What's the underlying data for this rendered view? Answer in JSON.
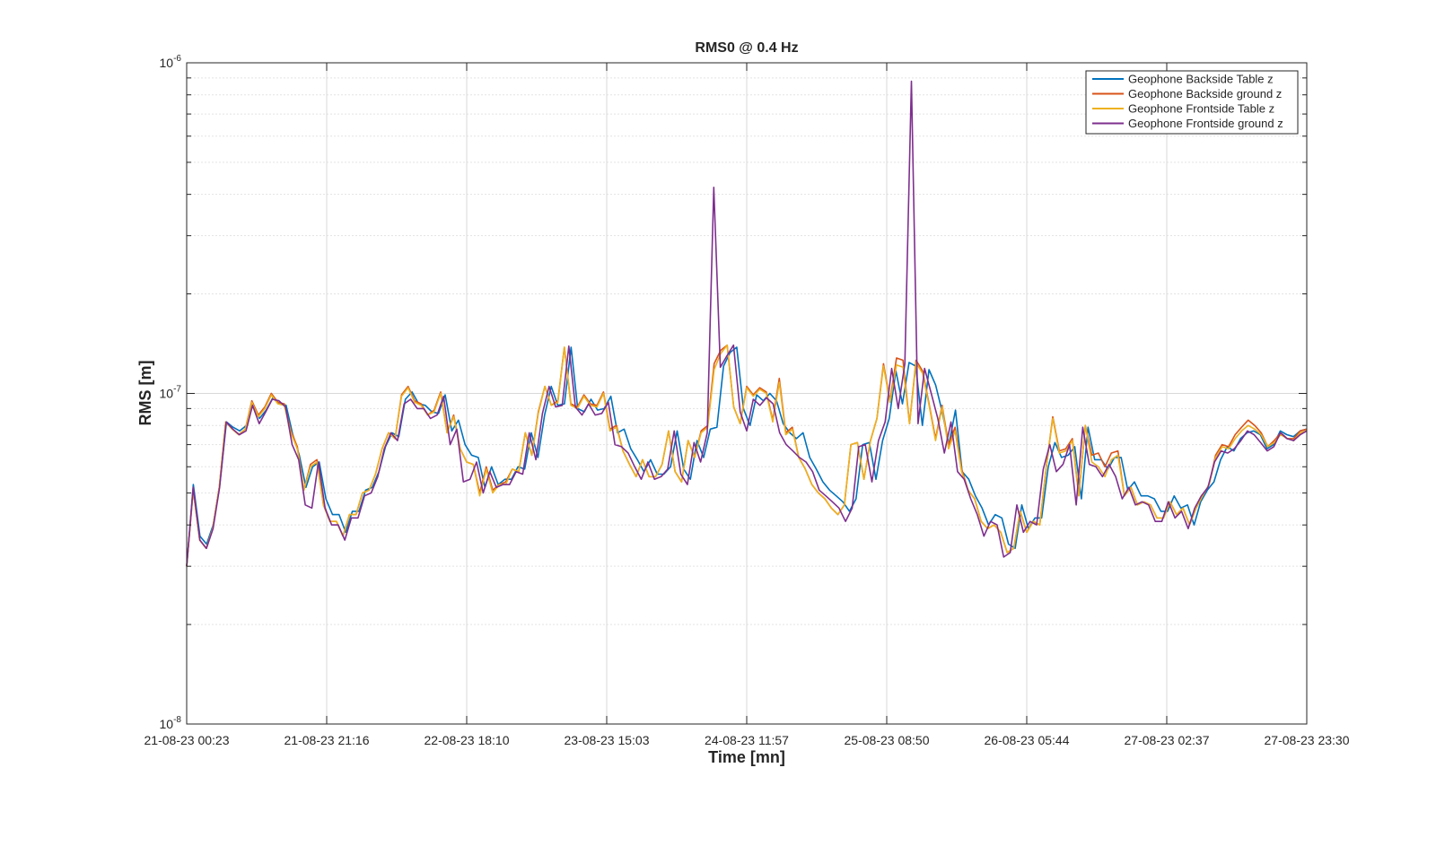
{
  "chart_data": {
    "type": "line",
    "title": "RMS0 @ 0.4 Hz",
    "xlabel": "Time [mn]",
    "ylabel": "RMS [m]",
    "yscale": "log",
    "ylim": [
      1e-08,
      1e-06
    ],
    "xlim": [
      0,
      8
    ],
    "grid": true,
    "legend_position": "top-right",
    "x_tick_labels": [
      "21-08-23 00:23",
      "21-08-23 21:16",
      "22-08-23 18:10",
      "23-08-23 15:03",
      "24-08-23 11:57",
      "25-08-23 08:50",
      "26-08-23 05:44",
      "27-08-23 02:37",
      "27-08-23 23:30"
    ],
    "y_ticks": [
      {
        "base": "10",
        "exp": "-8",
        "value": 1e-08
      },
      {
        "base": "10",
        "exp": "-7",
        "value": 1e-07
      },
      {
        "base": "10",
        "exp": "-6",
        "value": 1e-06
      }
    ],
    "series": [
      {
        "name": "Geophone Backside Table z",
        "color": "#0072BD",
        "values": [
          3.0,
          5.3,
          3.7,
          3.5,
          4.0,
          5.3,
          8.2,
          7.9,
          7.7,
          8.0,
          9.3,
          8.4,
          8.9,
          9.7,
          9.3,
          9.2,
          7.5,
          6.5,
          5.2,
          6.0,
          6.2,
          4.8,
          4.3,
          4.3,
          3.8,
          4.4,
          4.4,
          5.1,
          5.2,
          5.8,
          6.9,
          7.6,
          7.4,
          9.6,
          10.1,
          9.3,
          9.2,
          8.8,
          8.7,
          9.9,
          7.7,
          8.3,
          7.0,
          6.5,
          6.4,
          5.2,
          6.0,
          5.3,
          5.5,
          5.5,
          6.0,
          5.9,
          7.6,
          6.4,
          8.6,
          10.5,
          9.2,
          9.3,
          13.8,
          9.0,
          8.8,
          9.6,
          8.9,
          9.0,
          9.8,
          7.6,
          7.8,
          6.8,
          6.3,
          5.8,
          6.3,
          5.7,
          5.7,
          6.0,
          7.7,
          5.9,
          5.5,
          7.2,
          6.4,
          7.8,
          7.9,
          12.1,
          13.3,
          13.8,
          9.0,
          8.0,
          9.9,
          9.5,
          10.0,
          9.5,
          8.1,
          7.6,
          7.3,
          7.6,
          6.4,
          5.9,
          5.4,
          5.1,
          4.9,
          4.7,
          4.4,
          4.8,
          7.0,
          7.1,
          5.5,
          7.2,
          8.4,
          11.7,
          9.3,
          12.4,
          12.1,
          8.0,
          11.8,
          10.6,
          8.8,
          7.0,
          8.9,
          5.8,
          5.5,
          4.9,
          4.5,
          4.0,
          4.3,
          4.2,
          3.5,
          3.4,
          4.6,
          3.9,
          4.2,
          4.2,
          6.0,
          7.1,
          6.4,
          6.5,
          6.9,
          4.8,
          7.9,
          6.3,
          6.3,
          5.9,
          6.4,
          6.4,
          5.1,
          5.4,
          4.9,
          4.9,
          4.8,
          4.4,
          4.4,
          4.9,
          4.5,
          4.6,
          4.0,
          4.7,
          5.1,
          5.4,
          6.3,
          6.9,
          6.7,
          7.3,
          7.6,
          7.7,
          7.5,
          6.8,
          7.0,
          7.7,
          7.5,
          7.4,
          7.7,
          7.8
        ]
      },
      {
        "name": "Geophone Backside ground z",
        "color": "#D95319",
        "values": [
          3.0,
          5.1,
          3.6,
          3.4,
          3.9,
          5.2,
          8.2,
          7.8,
          7.5,
          7.8,
          9.5,
          8.6,
          9.1,
          10.0,
          9.4,
          9.3,
          7.7,
          6.9,
          5.1,
          6.1,
          6.3,
          4.6,
          4.1,
          4.1,
          3.7,
          4.3,
          4.3,
          5.0,
          5.1,
          5.7,
          6.8,
          7.6,
          7.3,
          9.9,
          10.5,
          9.5,
          9.3,
          8.6,
          8.9,
          10.1,
          7.6,
          8.6,
          6.8,
          6.2,
          6.1,
          5.0,
          6.0,
          5.1,
          5.3,
          5.4,
          5.9,
          5.8,
          7.6,
          6.5,
          8.8,
          10.5,
          9.2,
          9.5,
          13.8,
          9.3,
          9.1,
          9.9,
          9.3,
          9.2,
          10.1,
          7.8,
          8.0,
          6.7,
          6.1,
          5.6,
          6.3,
          5.6,
          5.6,
          6.1,
          7.7,
          5.8,
          5.4,
          7.2,
          6.4,
          7.7,
          8.0,
          12.3,
          13.5,
          14.0,
          9.1,
          8.1,
          10.5,
          9.9,
          10.4,
          10.1,
          8.3,
          11.1,
          7.6,
          7.9,
          6.4,
          5.9,
          5.3,
          5.0,
          4.8,
          4.5,
          4.3,
          4.6,
          7.0,
          7.1,
          5.5,
          7.2,
          8.4,
          12.3,
          9.5,
          12.8,
          12.6,
          8.1,
          12.6,
          11.7,
          9.3,
          7.3,
          9.2,
          7.0,
          7.9,
          5.9,
          5.1,
          4.8,
          4.1,
          3.9,
          4.0,
          3.8,
          3.3,
          3.4,
          4.4,
          3.8,
          4.1,
          4.0,
          6.0,
          8.5,
          6.7,
          6.8,
          7.3,
          4.9,
          8.0,
          6.5,
          6.6,
          6.0,
          6.6,
          6.7,
          4.9,
          5.2,
          4.6,
          4.7,
          4.6,
          4.2,
          4.2,
          4.7,
          4.3,
          4.5,
          4.0,
          4.5,
          4.9,
          5.3,
          6.5,
          7.0,
          6.9,
          7.5,
          7.9,
          8.3,
          8.0,
          7.6,
          6.9,
          7.2,
          7.6,
          7.3,
          7.3,
          7.7,
          7.8
        ]
      },
      {
        "name": "Geophone Frontside Table z",
        "color": "#EDB120",
        "values": [
          3.0,
          5.1,
          3.6,
          3.4,
          3.9,
          5.2,
          8.2,
          7.8,
          7.5,
          7.8,
          9.4,
          8.5,
          9.0,
          9.9,
          9.3,
          9.2,
          7.6,
          6.8,
          5.1,
          6.0,
          6.2,
          4.6,
          4.1,
          4.1,
          3.7,
          4.3,
          4.3,
          5.0,
          5.1,
          5.7,
          6.8,
          7.6,
          7.3,
          9.8,
          10.4,
          9.4,
          9.2,
          8.6,
          8.8,
          10.0,
          7.6,
          8.5,
          6.8,
          6.2,
          6.1,
          4.9,
          5.9,
          5.0,
          5.3,
          5.3,
          5.9,
          5.8,
          7.6,
          6.5,
          8.7,
          10.5,
          9.2,
          9.4,
          13.8,
          9.2,
          9.0,
          9.8,
          9.2,
          9.1,
          10.0,
          7.7,
          7.9,
          6.7,
          6.1,
          5.6,
          6.3,
          5.6,
          5.6,
          6.1,
          7.7,
          5.8,
          5.4,
          7.2,
          6.4,
          7.6,
          7.9,
          11.8,
          13.2,
          14.0,
          9.1,
          8.1,
          10.4,
          9.8,
          10.3,
          10.0,
          8.2,
          10.8,
          7.5,
          7.8,
          6.4,
          5.9,
          5.3,
          5.0,
          4.8,
          4.5,
          4.3,
          4.6,
          7.0,
          7.1,
          5.5,
          7.2,
          8.4,
          12.1,
          9.4,
          12.2,
          12.0,
          8.1,
          12.4,
          11.5,
          9.2,
          7.2,
          9.1,
          6.8,
          7.7,
          5.8,
          5.1,
          4.8,
          4.1,
          3.9,
          4.0,
          3.8,
          3.3,
          3.4,
          4.4,
          3.8,
          4.1,
          4.0,
          6.0,
          8.4,
          6.6,
          6.7,
          7.2,
          4.9,
          8.0,
          6.2,
          6.0,
          5.6,
          6.3,
          6.5,
          4.9,
          5.2,
          4.6,
          4.7,
          4.6,
          4.2,
          4.2,
          4.7,
          4.3,
          4.5,
          4.0,
          4.5,
          4.9,
          5.3,
          6.4,
          6.9,
          6.8,
          7.3,
          7.7,
          8.0,
          7.8,
          7.5,
          6.9,
          7.1,
          7.5,
          7.3,
          7.2,
          7.6,
          7.7
        ]
      },
      {
        "name": "Geophone Frontside ground z",
        "color": "#7E2F8E",
        "values": [
          3.0,
          5.2,
          3.6,
          3.4,
          3.9,
          5.2,
          8.2,
          7.8,
          7.5,
          7.7,
          9.2,
          8.1,
          8.8,
          9.6,
          9.5,
          9.1,
          7.0,
          6.3,
          4.6,
          4.5,
          6.2,
          4.5,
          4.0,
          4.0,
          3.6,
          4.2,
          4.2,
          4.9,
          5.0,
          5.6,
          6.8,
          7.6,
          7.2,
          9.3,
          9.6,
          9.0,
          9.0,
          8.4,
          8.6,
          9.8,
          7.0,
          7.8,
          5.4,
          5.5,
          6.2,
          5.0,
          5.8,
          5.2,
          5.3,
          5.3,
          5.8,
          5.7,
          7.6,
          6.3,
          8.7,
          10.5,
          9.1,
          9.2,
          13.9,
          9.1,
          8.6,
          9.3,
          8.6,
          8.7,
          9.4,
          7.0,
          6.9,
          6.6,
          6.0,
          5.5,
          6.2,
          5.5,
          5.6,
          5.9,
          7.7,
          5.7,
          5.3,
          7.1,
          6.2,
          7.6,
          42.0,
          12.0,
          13.0,
          14.0,
          8.8,
          7.7,
          9.6,
          9.2,
          9.7,
          9.3,
          7.6,
          7.0,
          6.7,
          6.4,
          6.2,
          5.8,
          5.1,
          4.9,
          4.7,
          4.5,
          4.1,
          4.5,
          6.9,
          7.0,
          5.4,
          7.2,
          8.2,
          11.9,
          9.0,
          12.3,
          88.0,
          8.1,
          11.9,
          10.0,
          8.4,
          6.6,
          8.2,
          5.8,
          5.5,
          4.8,
          4.3,
          3.7,
          4.1,
          4.0,
          3.2,
          3.3,
          4.6,
          3.8,
          4.1,
          4.0,
          5.9,
          7.0,
          5.8,
          6.1,
          7.0,
          4.6,
          7.9,
          6.1,
          6.0,
          5.6,
          6.1,
          5.6,
          4.8,
          5.2,
          4.6,
          4.7,
          4.6,
          4.1,
          4.1,
          4.7,
          4.2,
          4.4,
          3.9,
          4.5,
          4.9,
          5.2,
          6.2,
          6.7,
          6.6,
          6.8,
          7.2,
          7.7,
          7.5,
          7.1,
          6.7,
          6.9,
          7.6,
          7.3,
          7.2,
          7.5,
          7.7
        ]
      }
    ]
  }
}
